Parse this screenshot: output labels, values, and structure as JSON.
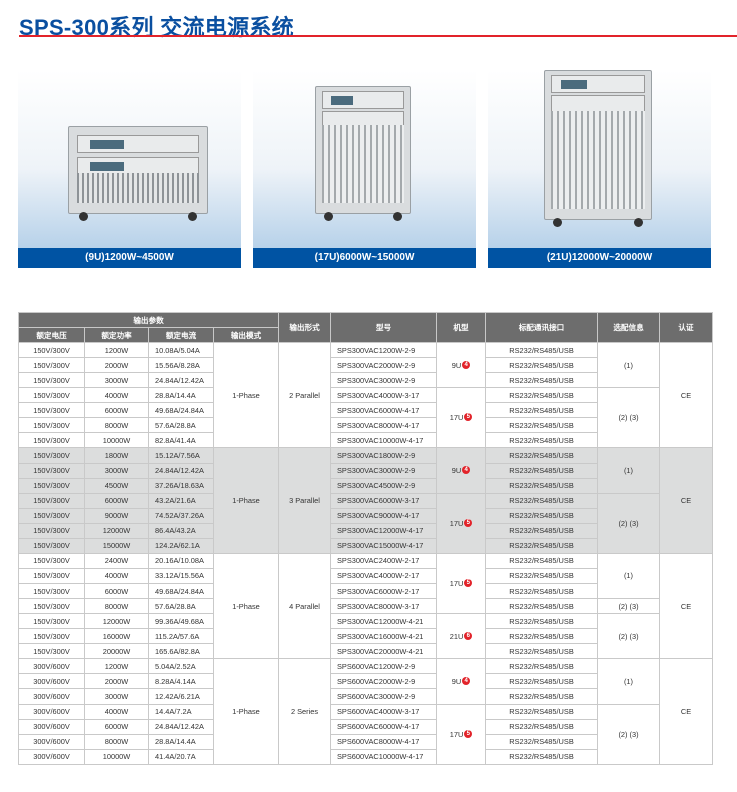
{
  "title": "SPS-300系列 交流电源系统",
  "colors": {
    "title": "#0a4fa0",
    "rule": "#e2232a",
    "caption_bg": "#0053a3",
    "header_bg": "#6d6d6d",
    "shade": "#dcdddd",
    "badge": "#e2232a"
  },
  "products": [
    {
      "caption": "(9U)1200W~4500W"
    },
    {
      "caption": "(17U)6000W~15000W"
    },
    {
      "caption": "(21U)12000W~20000W"
    }
  ],
  "table": {
    "group_header": "输出参数",
    "headers": [
      "额定电压",
      "额定功率",
      "额定电流",
      "输出模式",
      "输出形式",
      "型号",
      "机型",
      "标配通讯接口",
      "选配信息",
      "认证"
    ],
    "groups": [
      {
        "shaded": false,
        "mode": "1-Phase",
        "form": "2 Parallel",
        "cert": "CE",
        "rows": [
          [
            "150V/300V",
            "1200W",
            "10.08A/5.04A",
            "SPS300VAC1200W-2-9",
            "RS232/RS485/USB"
          ],
          [
            "150V/300V",
            "2000W",
            "15.56A/8.28A",
            "SPS300VAC2000W-2-9",
            "RS232/RS485/USB"
          ],
          [
            "150V/300V",
            "3000W",
            "24.84A/12.42A",
            "SPS300VAC3000W-2-9",
            "RS232/RS485/USB"
          ],
          [
            "150V/300V",
            "4000W",
            "28.8A/14.4A",
            "SPS300VAC4000W-3-17",
            "RS232/RS485/USB"
          ],
          [
            "150V/300V",
            "6000W",
            "49.68A/24.84A",
            "SPS300VAC6000W-4-17",
            "RS232/RS485/USB"
          ],
          [
            "150V/300V",
            "8000W",
            "57.6A/28.8A",
            "SPS300VAC8000W-4-17",
            "RS232/RS485/USB"
          ],
          [
            "150V/300V",
            "10000W",
            "82.8A/41.4A",
            "SPS300VAC10000W-4-17",
            "RS232/RS485/USB"
          ]
        ],
        "types": [
          {
            "label": "9U",
            "badge": "4",
            "span": 3
          },
          {
            "label": "17U",
            "badge": "5",
            "span": 4
          }
        ],
        "options": [
          {
            "label": "(1)",
            "span": 3
          },
          {
            "label": "(2) (3)",
            "span": 4
          }
        ]
      },
      {
        "shaded": true,
        "mode": "1-Phase",
        "form": "3 Parallel",
        "cert": "CE",
        "rows": [
          [
            "150V/300V",
            "1800W",
            "15.12A/7.56A",
            "SPS300VAC1800W-2-9",
            "RS232/RS485/USB"
          ],
          [
            "150V/300V",
            "3000W",
            "24.84A/12.42A",
            "SPS300VAC3000W-2-9",
            "RS232/RS485/USB"
          ],
          [
            "150V/300V",
            "4500W",
            "37.26A/18.63A",
            "SPS300VAC4500W-2-9",
            "RS232/RS485/USB"
          ],
          [
            "150V/300V",
            "6000W",
            "43.2A/21.6A",
            "SPS300VAC6000W-3-17",
            "RS232/RS485/USB"
          ],
          [
            "150V/300V",
            "9000W",
            "74.52A/37.26A",
            "SPS300VAC9000W-4-17",
            "RS232/RS485/USB"
          ],
          [
            "150V/300V",
            "12000W",
            "86.4A/43.2A",
            "SPS300VAC12000W-4-17",
            "RS232/RS485/USB"
          ],
          [
            "150V/300V",
            "15000W",
            "124.2A/62.1A",
            "SPS300VAC15000W-4-17",
            "RS232/RS485/USB"
          ]
        ],
        "types": [
          {
            "label": "9U",
            "badge": "4",
            "span": 3
          },
          {
            "label": "17U",
            "badge": "5",
            "span": 4
          }
        ],
        "options": [
          {
            "label": "(1)",
            "span": 3
          },
          {
            "label": "(2) (3)",
            "span": 4
          }
        ]
      },
      {
        "shaded": false,
        "mode": "1-Phase",
        "form": "4 Parallel",
        "cert": "CE",
        "rows": [
          [
            "150V/300V",
            "2400W",
            "20.16A/10.08A",
            "SPS300VAC2400W-2-17",
            "RS232/RS485/USB"
          ],
          [
            "150V/300V",
            "4000W",
            "33.12A/15.56A",
            "SPS300VAC4000W-2-17",
            "RS232/RS485/USB"
          ],
          [
            "150V/300V",
            "6000W",
            "49.68A/24.84A",
            "SPS300VAC6000W-2-17",
            "RS232/RS485/USB"
          ],
          [
            "150V/300V",
            "8000W",
            "57.6A/28.8A",
            "SPS300VAC8000W-3-17",
            "RS232/RS485/USB"
          ],
          [
            "150V/300V",
            "12000W",
            "99.36A/49.68A",
            "SPS300VAC12000W-4-21",
            "RS232/RS485/USB"
          ],
          [
            "150V/300V",
            "16000W",
            "115.2A/57.6A",
            "SPS300VAC16000W-4-21",
            "RS232/RS485/USB"
          ],
          [
            "150V/300V",
            "20000W",
            "165.6A/82.8A",
            "SPS300VAC20000W-4-21",
            "RS232/RS485/USB"
          ]
        ],
        "types": [
          {
            "label": "17U",
            "badge": "5",
            "span": 4
          },
          {
            "label": "21U",
            "badge": "6",
            "span": 3
          }
        ],
        "options": [
          {
            "label": "(1)",
            "span": 3
          },
          {
            "label": "(2) (3)",
            "span": 1
          },
          {
            "label": "(2) (3)",
            "span": 3
          }
        ]
      },
      {
        "shaded": false,
        "mode": "1-Phase",
        "form": "2 Series",
        "cert": "CE",
        "rows": [
          [
            "300V/600V",
            "1200W",
            "5.04A/2.52A",
            "SPS600VAC1200W-2-9",
            "RS232/RS485/USB"
          ],
          [
            "300V/600V",
            "2000W",
            "8.28A/4.14A",
            "SPS600VAC2000W-2-9",
            "RS232/RS485/USB"
          ],
          [
            "300V/600V",
            "3000W",
            "12.42A/6.21A",
            "SPS600VAC3000W-2-9",
            "RS232/RS485/USB"
          ],
          [
            "300V/600V",
            "4000W",
            "14.4A/7.2A",
            "SPS600VAC4000W-3-17",
            "RS232/RS485/USB"
          ],
          [
            "300V/600V",
            "6000W",
            "24.84A/12.42A",
            "SPS600VAC6000W-4-17",
            "RS232/RS485/USB"
          ],
          [
            "300V/600V",
            "8000W",
            "28.8A/14.4A",
            "SPS600VAC8000W-4-17",
            "RS232/RS485/USB"
          ],
          [
            "300V/600V",
            "10000W",
            "41.4A/20.7A",
            "SPS600VAC10000W-4-17",
            "RS232/RS485/USB"
          ]
        ],
        "types": [
          {
            "label": "9U",
            "badge": "4",
            "span": 3
          },
          {
            "label": "17U",
            "badge": "5",
            "span": 4
          }
        ],
        "options": [
          {
            "label": "(1)",
            "span": 3
          },
          {
            "label": "(2) (3)",
            "span": 4
          }
        ]
      }
    ]
  }
}
